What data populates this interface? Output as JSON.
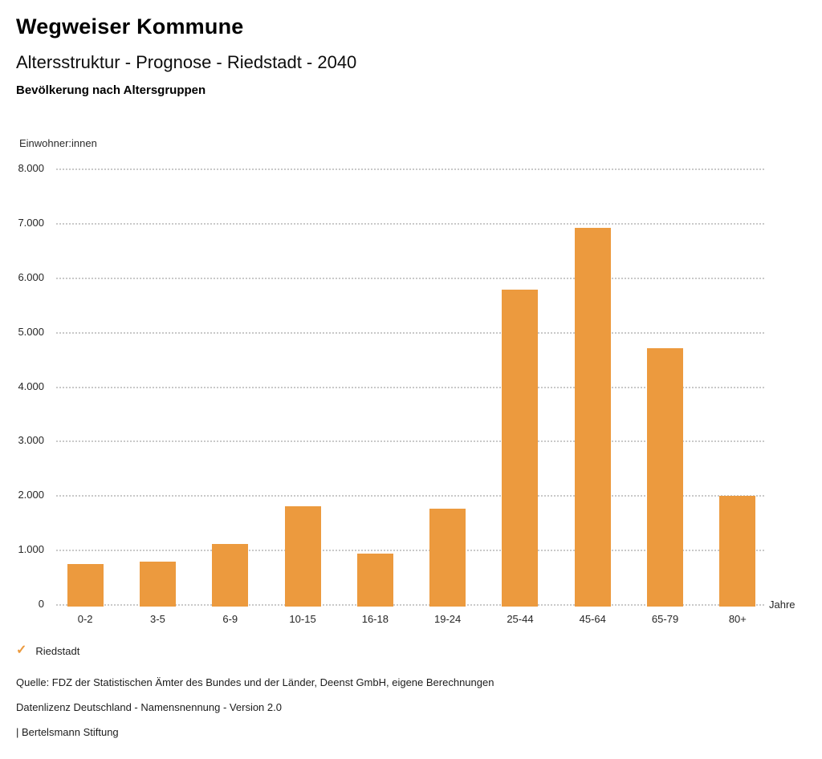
{
  "header": {
    "title": "Wegweiser Kommune",
    "subtitle": "Altersstruktur - Prognose - Riedstadt - 2040"
  },
  "legend": {
    "check_glyph": "✓",
    "items": [
      {
        "label": "Riedstadt",
        "color": "#EC9A3E",
        "checked": true
      }
    ]
  },
  "footer": {
    "source": "Quelle: FDZ der Statistischen Ämter des Bundes und der Länder, Deenst GmbH, eigene Berechnungen",
    "license": "Datenlizenz Deutschland - Namensnennung - Version 2.0",
    "attribution": "| Bertelsmann Stiftung"
  },
  "colors": {
    "accent": "#EC9A3E",
    "grid": "#c9c9c9",
    "text": "#1a1a1a"
  },
  "chart_data": {
    "type": "bar",
    "title": "Bevölkerung nach Altersgruppen",
    "categories": [
      "0-2",
      "3-5",
      "6-9",
      "10-15",
      "16-18",
      "19-24",
      "25-44",
      "45-64",
      "65-79",
      "80+"
    ],
    "values": [
      730,
      780,
      1100,
      1800,
      930,
      1750,
      5770,
      6910,
      4700,
      1990
    ],
    "series_name": "Riedstadt",
    "xlabel": "Jahre",
    "ylabel": "Einwohner:innen",
    "ylim": [
      0,
      8000
    ],
    "ytick_step": 1000,
    "ytick_labels": [
      "0",
      "1.000",
      "2.000",
      "3.000",
      "4.000",
      "5.000",
      "6.000",
      "7.000",
      "8.000"
    ],
    "grid": "dotted-horizontal",
    "legend_position": "bottom-left"
  }
}
